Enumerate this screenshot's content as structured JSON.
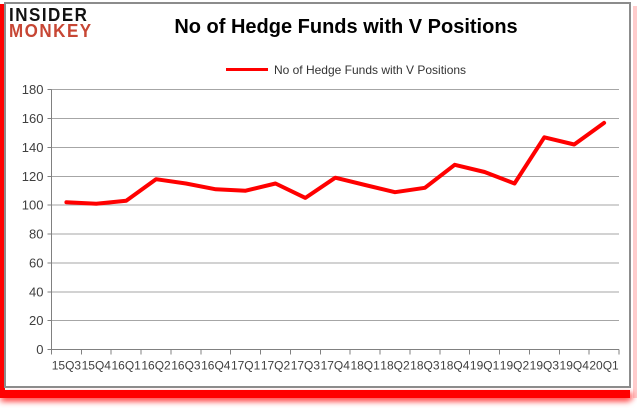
{
  "logo": {
    "line1": "INSIDER",
    "line2": "MONKEY"
  },
  "header": {
    "title": "No of Hedge Funds with V Positions"
  },
  "legend": {
    "label": "No of Hedge Funds with V Positions",
    "line_color": "#ff0000"
  },
  "colors": {
    "series_line": "#ff0000",
    "gridline": "#a6a6a6",
    "axis": "#808080",
    "tick_label": "#3f3f3f",
    "frame_border": "#8c8c8c",
    "accent_red": "#ff0000",
    "logo_red": "#c74634"
  },
  "chart_data": {
    "type": "line",
    "title": "No of Hedge Funds with V Positions",
    "xlabel": "",
    "ylabel": "",
    "categories": [
      "15Q3",
      "15Q4",
      "16Q1",
      "16Q2",
      "16Q3",
      "16Q4",
      "17Q1",
      "17Q2",
      "17Q3",
      "17Q4",
      "18Q1",
      "18Q2",
      "18Q3",
      "18Q4",
      "19Q1",
      "19Q2",
      "19Q3",
      "19Q4",
      "20Q1"
    ],
    "series": [
      {
        "name": "No of Hedge Funds with V Positions",
        "color": "#ff0000",
        "values": [
          102,
          101,
          103,
          118,
          115,
          111,
          110,
          115,
          105,
          119,
          114,
          109,
          112,
          128,
          123,
          115,
          147,
          142,
          157
        ]
      }
    ],
    "ylim": [
      0,
      180
    ],
    "ytick_interval": 20,
    "grid": true,
    "legend_position": "top-center"
  }
}
